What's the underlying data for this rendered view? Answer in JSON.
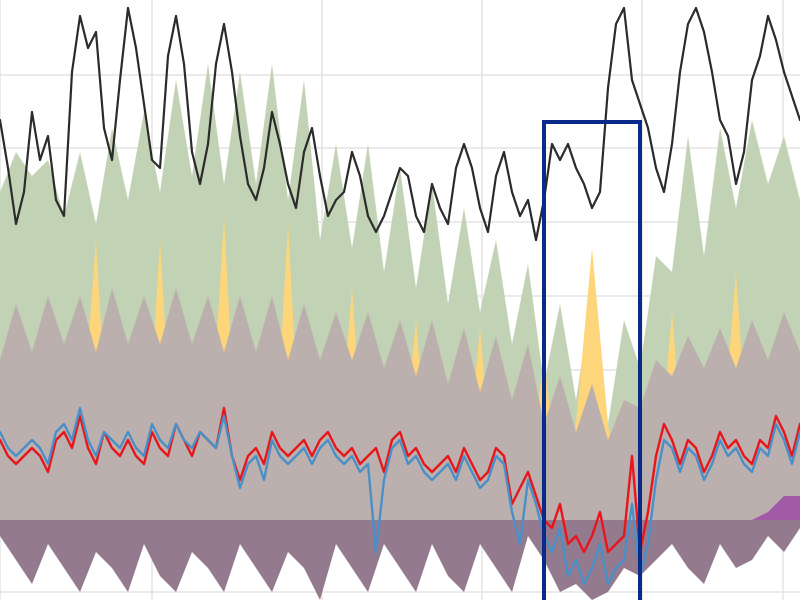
{
  "colors": {
    "background": "#ffffff",
    "grid": "#e3e3e3",
    "gas_area": "#c2d2b4",
    "solar_area": "#fdd57a",
    "baseload_area": "#bcb0ae",
    "import_area": "#937a8e",
    "purple_accent": "#a05aa8",
    "total_line": "#2b2b2b",
    "price_line_red": "#e8161b",
    "price_line_blue": "#4a90c8",
    "highlight_box": "#0a2a8a"
  },
  "chart_data": {
    "type": "area",
    "title": "",
    "xlabel": "",
    "ylabel": "",
    "legend": "none",
    "grid": true,
    "x_range": [
      0,
      100
    ],
    "y_range": [
      -10,
      65
    ],
    "baseline": 0,
    "highlight_range": {
      "x_start": 68,
      "x_end": 80
    },
    "series": [
      {
        "type": "area",
        "style_key": "gas_area",
        "x": [
          0,
          2,
          4,
          6,
          8,
          10,
          12,
          14,
          16,
          18,
          20,
          22,
          24,
          26,
          28,
          30,
          32,
          34,
          36,
          38,
          40,
          42,
          44,
          46,
          48,
          50,
          52,
          54,
          56,
          58,
          60,
          62,
          64,
          66,
          68,
          70,
          72,
          74,
          76,
          78,
          80,
          82,
          84,
          86,
          88,
          90,
          92,
          94,
          96,
          98,
          100
        ],
        "values": [
          41,
          46,
          43,
          45,
          38,
          46,
          37,
          49,
          40,
          51,
          41,
          55,
          43,
          57,
          42,
          56,
          42,
          57,
          40,
          55,
          35,
          47,
          34,
          47,
          31,
          44,
          29,
          42,
          27,
          39,
          26,
          35,
          22,
          32,
          17,
          27,
          15,
          28,
          12,
          25,
          19,
          33,
          31,
          48,
          33,
          49,
          39,
          50,
          42,
          48,
          40
        ]
      },
      {
        "type": "area",
        "style_key": "solar_area",
        "x": [
          0,
          2,
          4,
          5,
          6,
          8,
          10,
          12,
          14,
          16,
          18,
          20,
          22,
          24,
          26,
          28,
          30,
          32,
          34,
          36,
          38,
          40,
          42,
          44,
          46,
          48,
          50,
          52,
          54,
          56,
          58,
          60,
          62,
          64,
          66,
          68,
          70,
          72,
          74,
          76,
          78,
          80,
          82,
          84,
          86,
          88,
          90,
          92,
          94,
          96,
          98,
          100
        ],
        "values": [
          0,
          0,
          5,
          12,
          0,
          0,
          8,
          35,
          0,
          0,
          2,
          35,
          0,
          0,
          4,
          38,
          0,
          0,
          2,
          37,
          0,
          0,
          4,
          29,
          0,
          0,
          4,
          25,
          0,
          0,
          3,
          24,
          0,
          0,
          3,
          21,
          0,
          12,
          34,
          12,
          0,
          0,
          3,
          26,
          0,
          0,
          6,
          31,
          0,
          0,
          5,
          0
        ]
      },
      {
        "type": "area",
        "style_key": "baseload_area",
        "x": [
          0,
          2,
          4,
          6,
          8,
          10,
          12,
          14,
          16,
          18,
          20,
          22,
          24,
          26,
          28,
          30,
          32,
          34,
          36,
          38,
          40,
          42,
          44,
          46,
          48,
          50,
          52,
          54,
          56,
          58,
          60,
          62,
          64,
          66,
          68,
          70,
          72,
          74,
          76,
          78,
          80,
          82,
          84,
          86,
          88,
          90,
          92,
          94,
          96,
          98,
          100
        ],
        "values": [
          20,
          27,
          21,
          28,
          22,
          28,
          21,
          29,
          22,
          28,
          22,
          29,
          22,
          28,
          21,
          28,
          21,
          28,
          20,
          27,
          20,
          26,
          20,
          26,
          19,
          25,
          18,
          25,
          17,
          24,
          16,
          23,
          15,
          22,
          12,
          18,
          11,
          17,
          10,
          15,
          14,
          20,
          18,
          23,
          19,
          24,
          19,
          25,
          20,
          26,
          21
        ]
      },
      {
        "type": "area",
        "style_key": "import_area",
        "x": [
          0,
          2,
          4,
          6,
          8,
          10,
          12,
          14,
          16,
          18,
          20,
          22,
          24,
          26,
          28,
          30,
          32,
          34,
          36,
          38,
          40,
          42,
          44,
          46,
          48,
          50,
          52,
          54,
          56,
          58,
          60,
          62,
          64,
          66,
          68,
          70,
          72,
          74,
          76,
          78,
          80,
          82,
          84,
          86,
          88,
          90,
          92,
          94,
          96,
          98,
          100
        ],
        "values": [
          -2,
          -5,
          -8,
          -3,
          -6,
          -9,
          -4,
          -6,
          -9,
          -3,
          -7,
          -9,
          -4,
          -6,
          -9,
          -3,
          -6,
          -9,
          -4,
          -6,
          -10,
          -3,
          -6,
          -9,
          -3,
          -6,
          -9,
          -3,
          -7,
          -9,
          -3,
          -6,
          -9,
          -2,
          -5,
          -9,
          -8,
          -10,
          -9,
          -6,
          -7,
          -5,
          -3,
          -6,
          -8,
          -3,
          -6,
          -5,
          -2,
          -4,
          -1
        ]
      },
      {
        "type": "area",
        "style_key": "purple_accent",
        "x": [
          92,
          94,
          96,
          98,
          100
        ],
        "values": [
          0,
          0,
          1,
          3,
          3
        ]
      },
      {
        "type": "line",
        "style_key": "total_line",
        "x": [
          0,
          1,
          2,
          3,
          4,
          5,
          6,
          7,
          8,
          9,
          10,
          11,
          12,
          13,
          14,
          15,
          16,
          17,
          18,
          19,
          20,
          21,
          22,
          23,
          24,
          25,
          26,
          27,
          28,
          29,
          30,
          31,
          32,
          33,
          34,
          35,
          36,
          37,
          38,
          39,
          40,
          41,
          42,
          43,
          44,
          45,
          46,
          47,
          48,
          49,
          50,
          51,
          52,
          53,
          54,
          55,
          56,
          57,
          58,
          59,
          60,
          61,
          62,
          63,
          64,
          65,
          66,
          67,
          68,
          69,
          70,
          71,
          72,
          73,
          74,
          75,
          76,
          77,
          78,
          79,
          80,
          81,
          82,
          83,
          84,
          85,
          86,
          87,
          88,
          89,
          90,
          91,
          92,
          93,
          94,
          95,
          96,
          97,
          98,
          99,
          100
        ],
        "values": [
          50,
          44,
          37,
          41,
          51,
          45,
          48,
          40,
          38,
          56,
          63,
          59,
          61,
          49,
          45,
          55,
          64,
          59,
          52,
          45,
          44,
          58,
          63,
          57,
          46,
          42,
          47,
          57,
          62,
          56,
          48,
          42,
          40,
          44,
          51,
          47,
          42,
          39,
          46,
          49,
          43,
          38,
          40,
          41,
          46,
          43,
          38,
          36,
          38,
          41,
          44,
          43,
          38,
          36,
          42,
          39,
          37,
          44,
          47,
          44,
          39,
          36,
          43,
          46,
          41,
          38,
          40,
          35,
          40,
          47,
          45,
          47,
          44,
          42,
          39,
          41,
          54,
          62,
          64,
          55,
          52,
          49,
          44,
          41,
          47,
          56,
          62,
          64,
          61,
          56,
          50,
          48,
          42,
          46,
          55,
          58,
          63,
          60,
          56,
          53,
          50
        ]
      },
      {
        "type": "line",
        "style_key": "price_line_red",
        "x": [
          0,
          1,
          2,
          3,
          4,
          5,
          6,
          7,
          8,
          9,
          10,
          11,
          12,
          13,
          14,
          15,
          16,
          17,
          18,
          19,
          20,
          21,
          22,
          23,
          24,
          25,
          26,
          27,
          28,
          29,
          30,
          31,
          32,
          33,
          34,
          35,
          36,
          37,
          38,
          39,
          40,
          41,
          42,
          43,
          44,
          45,
          46,
          47,
          48,
          49,
          50,
          51,
          52,
          53,
          54,
          55,
          56,
          57,
          58,
          59,
          60,
          61,
          62,
          63,
          64,
          65,
          66,
          67,
          68,
          69,
          70,
          71,
          72,
          73,
          74,
          75,
          76,
          77,
          78,
          79,
          80,
          81,
          82,
          83,
          84,
          85,
          86,
          87,
          88,
          89,
          90,
          91,
          92,
          93,
          94,
          95,
          96,
          97,
          98,
          99,
          100
        ],
        "values": [
          10,
          8,
          7,
          8,
          9,
          8,
          6,
          10,
          11,
          9,
          13,
          9,
          7,
          11,
          9,
          8,
          10,
          8,
          7,
          11,
          9,
          8,
          12,
          10,
          8,
          11,
          10,
          9,
          14,
          8,
          5,
          8,
          9,
          7,
          11,
          9,
          8,
          9,
          10,
          8,
          10,
          11,
          9,
          8,
          9,
          7,
          8,
          9,
          6,
          10,
          11,
          8,
          9,
          7,
          6,
          7,
          8,
          6,
          9,
          7,
          5,
          6,
          9,
          8,
          2,
          4,
          6,
          3,
          0,
          -1,
          2,
          -3,
          -2,
          -4,
          -2,
          1,
          -4,
          -3,
          -2,
          8,
          -4,
          1,
          8,
          12,
          10,
          7,
          10,
          9,
          6,
          8,
          11,
          9,
          10,
          8,
          7,
          10,
          9,
          13,
          11,
          8,
          12
        ]
      },
      {
        "type": "line",
        "style_key": "price_line_blue",
        "x": [
          0,
          1,
          2,
          3,
          4,
          5,
          6,
          7,
          8,
          9,
          10,
          11,
          12,
          13,
          14,
          15,
          16,
          17,
          18,
          19,
          20,
          21,
          22,
          23,
          24,
          25,
          26,
          27,
          28,
          29,
          30,
          31,
          32,
          33,
          34,
          35,
          36,
          37,
          38,
          39,
          40,
          41,
          42,
          43,
          44,
          45,
          46,
          47,
          48,
          49,
          50,
          51,
          52,
          53,
          54,
          55,
          56,
          57,
          58,
          59,
          60,
          61,
          62,
          63,
          64,
          65,
          66,
          67,
          68,
          69,
          70,
          71,
          72,
          73,
          74,
          75,
          76,
          77,
          78,
          79,
          80,
          81,
          82,
          83,
          84,
          85,
          86,
          87,
          88,
          89,
          90,
          91,
          92,
          93,
          94,
          95,
          96,
          97,
          98,
          99,
          100
        ],
        "values": [
          11,
          9,
          8,
          9,
          10,
          9,
          7,
          11,
          12,
          10,
          14,
          10,
          8,
          11,
          10,
          9,
          11,
          9,
          8,
          12,
          10,
          9,
          12,
          10,
          9,
          11,
          10,
          9,
          13,
          8,
          4,
          7,
          8,
          5,
          10,
          8,
          7,
          8,
          9,
          7,
          9,
          10,
          8,
          7,
          8,
          6,
          7,
          -4,
          5,
          9,
          10,
          7,
          8,
          6,
          5,
          6,
          7,
          5,
          8,
          6,
          4,
          5,
          8,
          7,
          1,
          -3,
          5,
          2,
          -2,
          -4,
          -1,
          -7,
          -5,
          -8,
          -6,
          -3,
          -8,
          -6,
          -5,
          2,
          -7,
          -3,
          5,
          10,
          9,
          6,
          9,
          8,
          5,
          7,
          10,
          8,
          9,
          7,
          6,
          9,
          8,
          12,
          10,
          7,
          11
        ]
      }
    ]
  }
}
